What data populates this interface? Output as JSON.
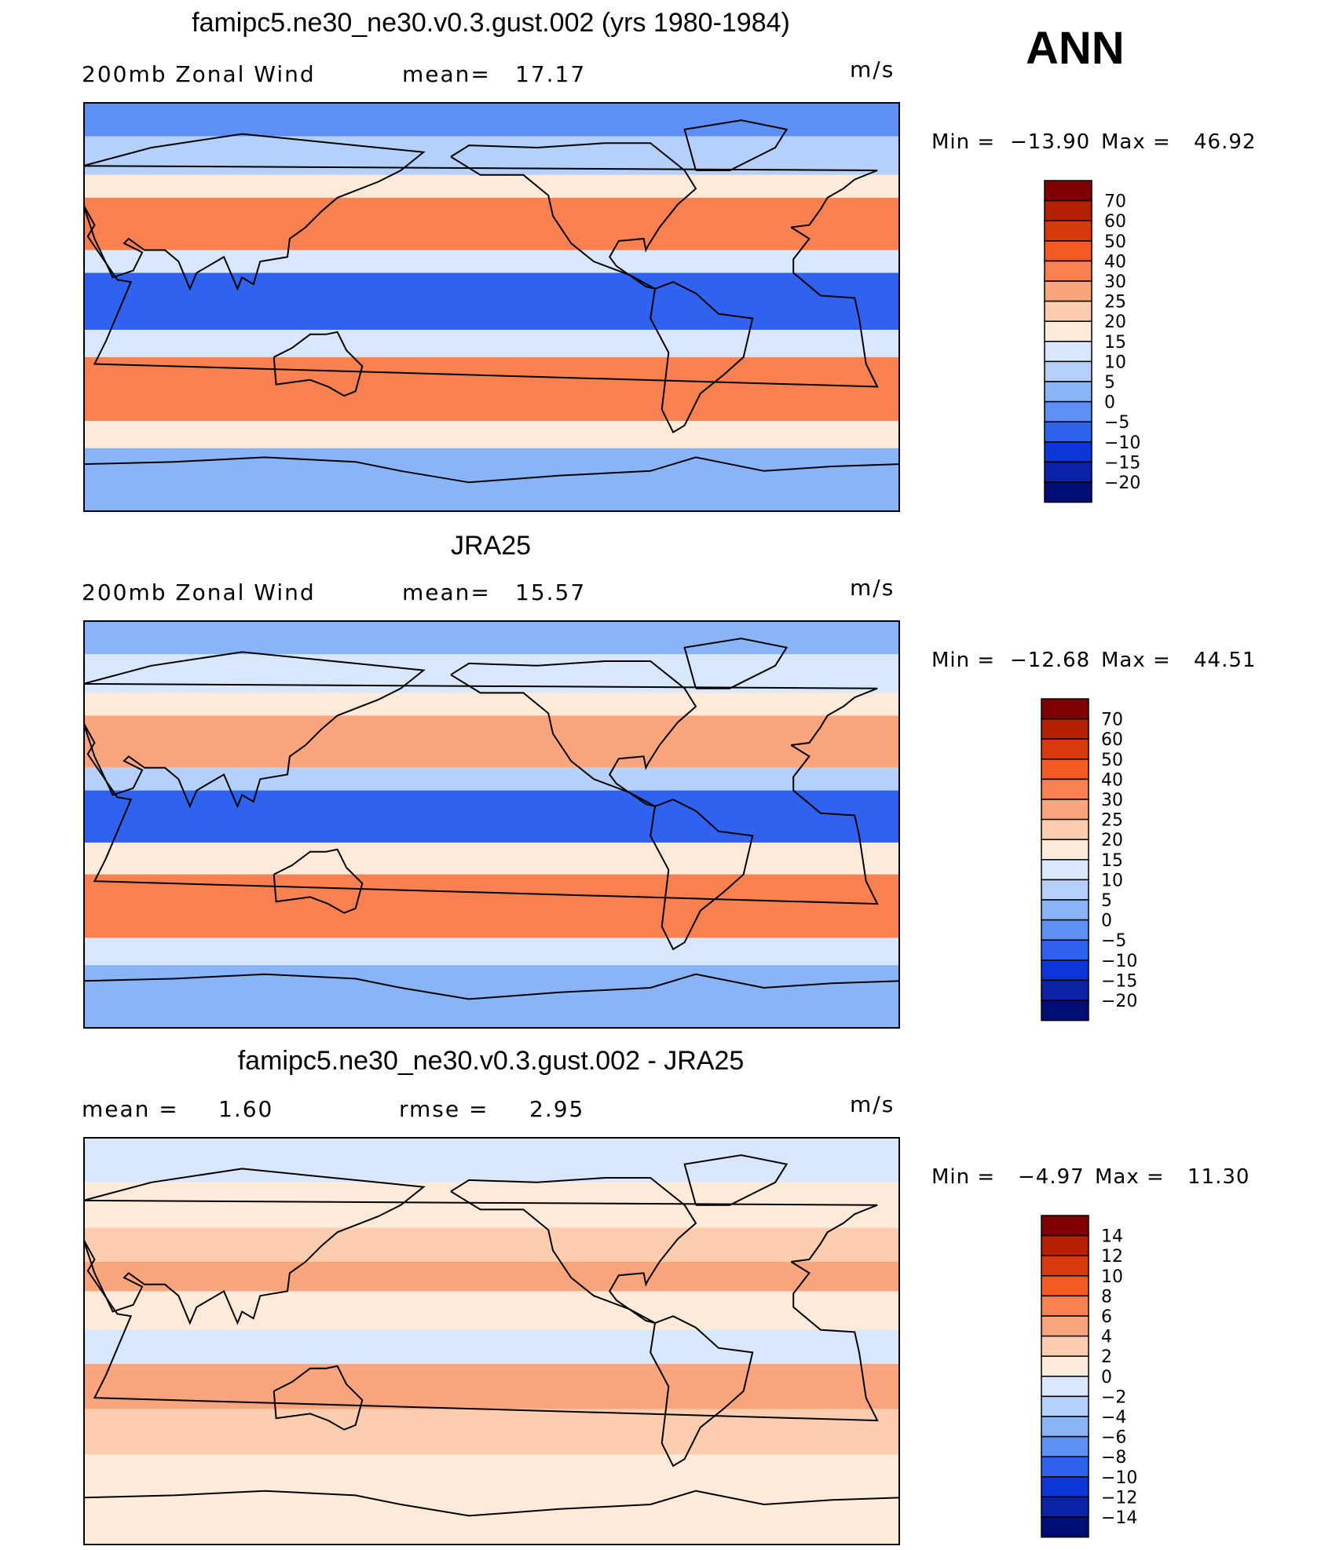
{
  "season": "ANN",
  "chart_data": [
    {
      "type": "heatmap",
      "variant": "filled-contour-map",
      "title": "famipc5.ne30_ne30.v0.3.gust.002 (yrs 1980-1984)",
      "field_label": "200mb Zonal Wind",
      "stat_label": "mean=",
      "stat_value": "17.17",
      "stat2_label": "",
      "stat2_value": "",
      "units": "m/s",
      "min_label": "Min =",
      "min_value": "−13.90",
      "max_label": "Max =",
      "max_value": "46.92",
      "levels": [
        "70",
        "60",
        "50",
        "40",
        "30",
        "25",
        "20",
        "15",
        "10",
        "5",
        "0",
        "−5",
        "−10",
        "−15",
        "−20"
      ],
      "colors": [
        "#7f0000",
        "#b52000",
        "#d93a0c",
        "#f45a23",
        "#f98050",
        "#fba57e",
        "#fdcdb0",
        "#feead8",
        "#d8e7fb",
        "#b4d0fb",
        "#8ab4f8",
        "#5d8ff4",
        "#2f62ef",
        "#0c36d6",
        "#0a23a6",
        "#000d73"
      ],
      "bands": [
        {
          "lat_range": [
            90,
            75
          ],
          "value": -2
        },
        {
          "lat_range": [
            75,
            58
          ],
          "value": 8
        },
        {
          "lat_range": [
            58,
            48
          ],
          "value": 18
        },
        {
          "lat_range": [
            48,
            25
          ],
          "value": 32
        },
        {
          "lat_range": [
            25,
            15
          ],
          "value": 12
        },
        {
          "lat_range": [
            15,
            -10
          ],
          "value": -8
        },
        {
          "lat_range": [
            -10,
            -22
          ],
          "value": 14
        },
        {
          "lat_range": [
            -22,
            -50
          ],
          "value": 33
        },
        {
          "lat_range": [
            -50,
            -62
          ],
          "value": 15
        },
        {
          "lat_range": [
            -62,
            -90
          ],
          "value": 3
        }
      ]
    },
    {
      "type": "heatmap",
      "variant": "filled-contour-map",
      "title": "JRA25",
      "field_label": "200mb Zonal Wind",
      "stat_label": "mean=",
      "stat_value": "15.57",
      "stat2_label": "",
      "stat2_value": "",
      "units": "m/s",
      "min_label": "Min =",
      "min_value": "−12.68",
      "max_label": "Max =",
      "max_value": "44.51",
      "levels": [
        "70",
        "60",
        "50",
        "40",
        "30",
        "25",
        "20",
        "15",
        "10",
        "5",
        "0",
        "−5",
        "−10",
        "−15",
        "−20"
      ],
      "colors": [
        "#7f0000",
        "#b52000",
        "#d93a0c",
        "#f45a23",
        "#f98050",
        "#fba57e",
        "#fdcdb0",
        "#feead8",
        "#d8e7fb",
        "#b4d0fb",
        "#8ab4f8",
        "#5d8ff4",
        "#2f62ef",
        "#0c36d6",
        "#0a23a6",
        "#000d73"
      ],
      "bands": [
        {
          "lat_range": [
            90,
            75
          ],
          "value": 3
        },
        {
          "lat_range": [
            75,
            58
          ],
          "value": 10
        },
        {
          "lat_range": [
            58,
            48
          ],
          "value": 17
        },
        {
          "lat_range": [
            48,
            25
          ],
          "value": 28
        },
        {
          "lat_range": [
            25,
            15
          ],
          "value": 8
        },
        {
          "lat_range": [
            15,
            -8
          ],
          "value": -6
        },
        {
          "lat_range": [
            -8,
            -22
          ],
          "value": 18
        },
        {
          "lat_range": [
            -22,
            -50
          ],
          "value": 30
        },
        {
          "lat_range": [
            -50,
            -62
          ],
          "value": 12
        },
        {
          "lat_range": [
            -62,
            -90
          ],
          "value": 2
        }
      ]
    },
    {
      "type": "heatmap",
      "variant": "filled-contour-map",
      "title": "famipc5.ne30_ne30.v0.3.gust.002 - JRA25",
      "field_label": "",
      "stat_label": "mean =",
      "stat_value": "1.60",
      "stat2_label": "rmse =",
      "stat2_value": "2.95",
      "units": "m/s",
      "min_label": "Min =",
      "min_value": "−4.97",
      "max_label": "Max =",
      "max_value": "11.30",
      "levels": [
        "14",
        "12",
        "10",
        "8",
        "6",
        "4",
        "2",
        "0",
        "−2",
        "−4",
        "−6",
        "−8",
        "−10",
        "−12",
        "−14"
      ],
      "colors": [
        "#7f0000",
        "#b52000",
        "#d93a0c",
        "#f45a23",
        "#f98050",
        "#fba57e",
        "#fdcdb0",
        "#feead8",
        "#d8e7fb",
        "#b4d0fb",
        "#8ab4f8",
        "#5d8ff4",
        "#2f62ef",
        "#0c36d6",
        "#0a23a6",
        "#000d73"
      ],
      "bands": [
        {
          "lat_range": [
            90,
            70
          ],
          "value": -1
        },
        {
          "lat_range": [
            70,
            50
          ],
          "value": 1
        },
        {
          "lat_range": [
            50,
            35
          ],
          "value": 2
        },
        {
          "lat_range": [
            35,
            22
          ],
          "value": 5
        },
        {
          "lat_range": [
            22,
            5
          ],
          "value": 1
        },
        {
          "lat_range": [
            5,
            -10
          ],
          "value": -2
        },
        {
          "lat_range": [
            -10,
            -30
          ],
          "value": 4
        },
        {
          "lat_range": [
            -30,
            -50
          ],
          "value": 2
        },
        {
          "lat_range": [
            -50,
            -70
          ],
          "value": 0
        },
        {
          "lat_range": [
            -70,
            -90
          ],
          "value": 1
        }
      ]
    }
  ]
}
